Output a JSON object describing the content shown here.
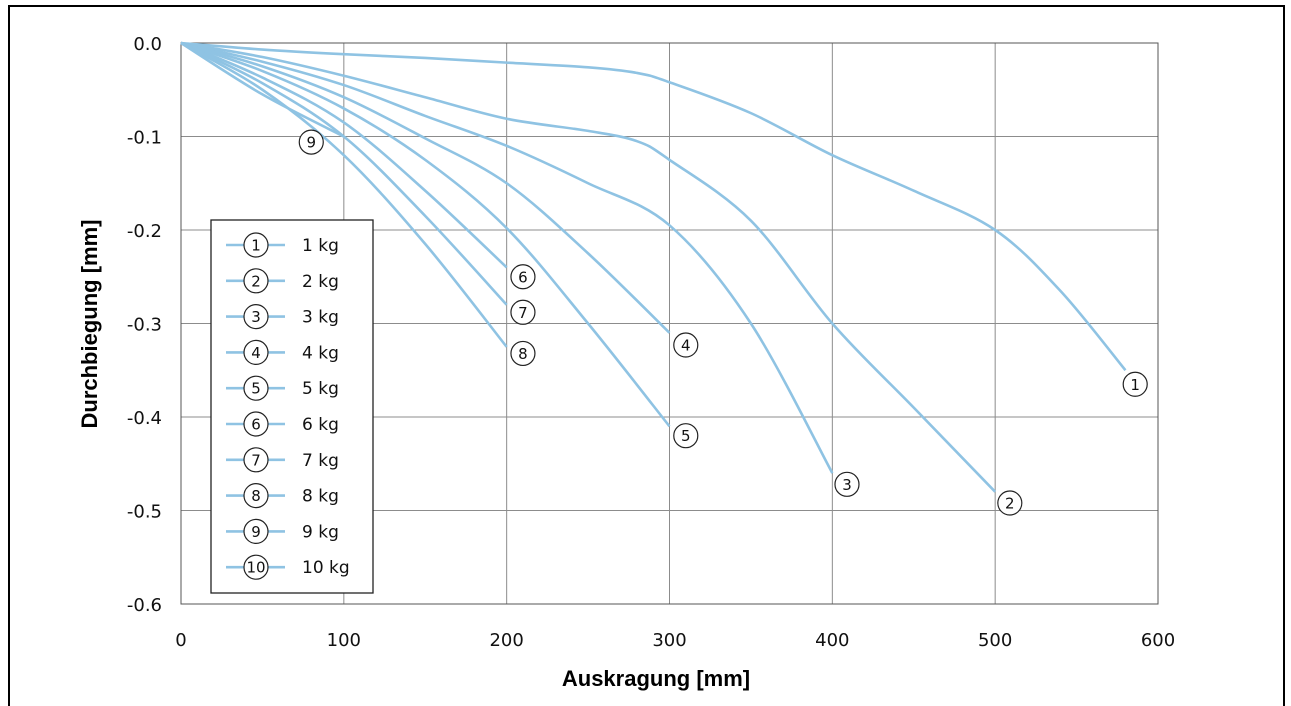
{
  "chart_data": {
    "type": "line",
    "xlabel": "Auskragung [mm]",
    "ylabel": "Durchbiegung [mm]",
    "xlim": [
      0,
      600
    ],
    "ylim": [
      -0.6,
      0.0
    ],
    "xticks": [
      "0",
      "100",
      "200",
      "300",
      "400",
      "500",
      "600"
    ],
    "yticks": [
      "0.0",
      "-0.1",
      "-0.2",
      "-0.3",
      "-0.4",
      "-0.5",
      "-0.6"
    ],
    "grid": true,
    "legend_position": "bottom-left",
    "line_color": "#8fc3e3",
    "series": [
      {
        "marker": "1",
        "name": "1 kg",
        "points": [
          [
            0,
            0
          ],
          [
            50,
            -0.007
          ],
          [
            100,
            -0.012
          ],
          [
            150,
            -0.016
          ],
          [
            200,
            -0.021
          ],
          [
            250,
            -0.026
          ],
          [
            280,
            -0.032
          ],
          [
            300,
            -0.042
          ],
          [
            350,
            -0.075
          ],
          [
            400,
            -0.12
          ],
          [
            450,
            -0.158
          ],
          [
            500,
            -0.2
          ],
          [
            540,
            -0.265
          ],
          [
            580,
            -0.35
          ]
        ]
      },
      {
        "marker": "2",
        "name": "2 kg",
        "points": [
          [
            0,
            0
          ],
          [
            50,
            -0.015
          ],
          [
            100,
            -0.035
          ],
          [
            150,
            -0.058
          ],
          [
            200,
            -0.081
          ],
          [
            250,
            -0.094
          ],
          [
            280,
            -0.105
          ],
          [
            300,
            -0.125
          ],
          [
            350,
            -0.19
          ],
          [
            400,
            -0.3
          ],
          [
            450,
            -0.39
          ],
          [
            500,
            -0.48
          ]
        ]
      },
      {
        "marker": "3",
        "name": "3 kg",
        "points": [
          [
            0,
            0
          ],
          [
            50,
            -0.02
          ],
          [
            100,
            -0.045
          ],
          [
            150,
            -0.078
          ],
          [
            200,
            -0.11
          ],
          [
            250,
            -0.15
          ],
          [
            300,
            -0.195
          ],
          [
            350,
            -0.3
          ],
          [
            400,
            -0.46
          ]
        ]
      },
      {
        "marker": "4",
        "name": "4 kg",
        "points": [
          [
            0,
            0
          ],
          [
            50,
            -0.025
          ],
          [
            100,
            -0.058
          ],
          [
            150,
            -0.102
          ],
          [
            200,
            -0.15
          ],
          [
            250,
            -0.225
          ],
          [
            300,
            -0.31
          ]
        ]
      },
      {
        "marker": "5",
        "name": "5 kg",
        "points": [
          [
            0,
            0
          ],
          [
            50,
            -0.03
          ],
          [
            100,
            -0.07
          ],
          [
            150,
            -0.125
          ],
          [
            200,
            -0.198
          ],
          [
            250,
            -0.3
          ],
          [
            300,
            -0.41
          ]
        ]
      },
      {
        "marker": "6",
        "name": "6 kg",
        "points": [
          [
            0,
            0
          ],
          [
            50,
            -0.037
          ],
          [
            100,
            -0.085
          ],
          [
            150,
            -0.158
          ],
          [
            200,
            -0.24
          ]
        ]
      },
      {
        "marker": "7",
        "name": "7 kg",
        "points": [
          [
            0,
            0
          ],
          [
            50,
            -0.043
          ],
          [
            100,
            -0.1
          ],
          [
            150,
            -0.185
          ],
          [
            200,
            -0.28
          ]
        ]
      },
      {
        "marker": "8",
        "name": "8 kg",
        "points": [
          [
            0,
            0
          ],
          [
            50,
            -0.05
          ],
          [
            100,
            -0.12
          ],
          [
            150,
            -0.215
          ],
          [
            200,
            -0.325
          ]
        ]
      },
      {
        "marker": "9",
        "name": "9 kg",
        "points": [
          [
            0,
            0
          ],
          [
            50,
            -0.055
          ],
          [
            100,
            -0.1
          ]
        ]
      },
      {
        "marker": "10",
        "name": "10 kg",
        "points": []
      }
    ],
    "annotations": [
      {
        "text": "1",
        "x": 586,
        "y": -0.365
      },
      {
        "text": "2",
        "x": 509,
        "y": -0.492
      },
      {
        "text": "3",
        "x": 409,
        "y": -0.472
      },
      {
        "text": "4",
        "x": 310,
        "y": -0.323
      },
      {
        "text": "5",
        "x": 310,
        "y": -0.42
      },
      {
        "text": "6",
        "x": 210,
        "y": -0.25
      },
      {
        "text": "7",
        "x": 210,
        "y": -0.288
      },
      {
        "text": "8",
        "x": 210,
        "y": -0.332
      },
      {
        "text": "9",
        "x": 80,
        "y": -0.106
      }
    ]
  }
}
